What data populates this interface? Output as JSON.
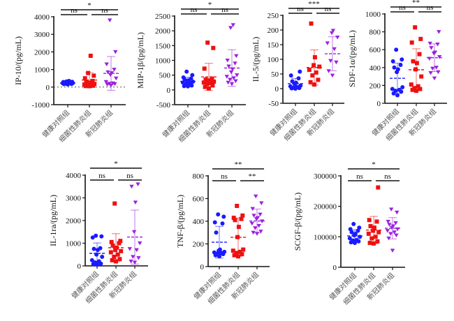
{
  "figure": {
    "group_colors": {
      "healthy": "#1a1aff",
      "bacterial": "#ee1111",
      "covid": "#9a22dd"
    }
  },
  "chart_data": [
    {
      "type": "scatter",
      "title": "",
      "ylabel": "IP-10/(pg/mL)",
      "xlabel": "",
      "categories": [
        "健康对照组",
        "细菌性肺炎组",
        "新冠肺炎组"
      ],
      "ylim": [
        -1000,
        4000
      ],
      "yticks": [
        -1000,
        0,
        1000,
        2000,
        3000,
        4000
      ],
      "zero_line": true,
      "series": [
        {
          "name": "健康对照组",
          "marker": "circle",
          "mean": 230,
          "sd": 70,
          "values": [
            150,
            170,
            180,
            200,
            210,
            220,
            230,
            240,
            250,
            260,
            270,
            290,
            300,
            320,
            350
          ]
        },
        {
          "name": "细菌性肺炎组",
          "marker": "square",
          "mean": 400,
          "sd": 420,
          "values": [
            50,
            60,
            80,
            100,
            120,
            150,
            180,
            200,
            250,
            300,
            350,
            500,
            650,
            800,
            1780
          ]
        },
        {
          "name": "新冠肺炎组",
          "marker": "triangle-down",
          "mean": 780,
          "sd": 960,
          "values": [
            100,
            150,
            180,
            200,
            220,
            300,
            500,
            700,
            800,
            850,
            1000,
            1300,
            2000,
            3800
          ]
        }
      ],
      "comparisons": [
        {
          "groups": [
            0,
            1
          ],
          "label": "ns"
        },
        {
          "groups": [
            1,
            2
          ],
          "label": "ns"
        },
        {
          "groups": [
            0,
            2
          ],
          "label": "*"
        }
      ]
    },
    {
      "type": "scatter",
      "title": "",
      "ylabel": "MIP-1β/(pg/mL)",
      "xlabel": "",
      "categories": [
        "健康对照组",
        "细菌性肺炎组",
        "新冠肺炎组"
      ],
      "ylim": [
        -500,
        2500
      ],
      "yticks": [
        -500,
        0,
        500,
        1000,
        1500,
        2000,
        2500
      ],
      "zero_line": false,
      "series": [
        {
          "name": "健康对照组",
          "marker": "circle",
          "mean": 290,
          "sd": 140,
          "values": [
            120,
            130,
            150,
            200,
            230,
            250,
            280,
            300,
            320,
            350,
            380,
            420,
            500,
            620
          ]
        },
        {
          "name": "细菌性肺炎组",
          "marker": "square",
          "mean": 440,
          "sd": 460,
          "values": [
            50,
            100,
            150,
            200,
            230,
            250,
            280,
            300,
            320,
            350,
            380,
            720,
            1420,
            1600
          ]
        },
        {
          "name": "新冠肺炎组",
          "marker": "triangle-down",
          "mean": 740,
          "sd": 620,
          "values": [
            200,
            250,
            300,
            350,
            400,
            450,
            500,
            600,
            700,
            800,
            900,
            1000,
            1150,
            2100,
            2200
          ]
        }
      ],
      "comparisons": [
        {
          "groups": [
            0,
            1
          ],
          "label": "ns"
        },
        {
          "groups": [
            1,
            2
          ],
          "label": "ns"
        },
        {
          "groups": [
            0,
            2
          ],
          "label": "*"
        }
      ]
    },
    {
      "type": "scatter",
      "title": "",
      "ylabel": "IL-5/(pg/mL)",
      "xlabel": "",
      "categories": [
        "健康对照组",
        "细菌性肺炎组",
        "新冠肺炎组"
      ],
      "ylim": [
        -50,
        250
      ],
      "yticks": [
        -50,
        0,
        50,
        100,
        150,
        200,
        250
      ],
      "zero_line": false,
      "series": [
        {
          "name": "健康对照组",
          "marker": "circle",
          "mean": 17,
          "sd": 18,
          "values": [
            0,
            1,
            2,
            3,
            5,
            8,
            10,
            15,
            20,
            25,
            35,
            45,
            58
          ]
        },
        {
          "name": "细菌性肺炎组",
          "marker": "square",
          "mean": 72,
          "sd": 60,
          "values": [
            14,
            22,
            30,
            45,
            55,
            64,
            75,
            80,
            107,
            222
          ]
        },
        {
          "name": "新冠肺炎组",
          "marker": "triangle-down",
          "mean": 119,
          "sd": 58,
          "values": [
            45,
            60,
            90,
            95,
            135,
            155,
            175,
            190,
            198
          ]
        }
      ],
      "comparisons": [
        {
          "groups": [
            0,
            1
          ],
          "label": "ns"
        },
        {
          "groups": [
            1,
            2
          ],
          "label": "ns"
        },
        {
          "groups": [
            0,
            2
          ],
          "label": "***"
        }
      ]
    },
    {
      "type": "scatter",
      "title": "",
      "ylabel": "SDF-1α/(pg/mL)",
      "xlabel": "",
      "categories": [
        "健康对照组",
        "细菌性肺炎组",
        "新冠肺炎组"
      ],
      "ylim": [
        0,
        1000
      ],
      "yticks": [
        0,
        200,
        400,
        600,
        800,
        1000
      ],
      "zero_line": false,
      "series": [
        {
          "name": "健康对照组",
          "marker": "circle",
          "mean": 280,
          "sd": 170,
          "values": [
            90,
            110,
            130,
            140,
            150,
            160,
            180,
            350,
            380,
            400,
            430,
            470,
            490,
            600
          ]
        },
        {
          "name": "细菌性肺炎组",
          "marker": "square",
          "mean": 375,
          "sd": 235,
          "values": [
            140,
            150,
            160,
            170,
            190,
            210,
            300,
            380,
            450,
            470,
            550,
            680,
            720,
            850
          ]
        },
        {
          "name": "新冠肺炎组",
          "marker": "triangle-down",
          "mean": 510,
          "sd": 155,
          "values": [
            280,
            340,
            350,
            390,
            400,
            500,
            520,
            560,
            570,
            620,
            660,
            670,
            800
          ]
        }
      ],
      "comparisons": [
        {
          "groups": [
            0,
            1
          ],
          "label": "ns"
        },
        {
          "groups": [
            1,
            2
          ],
          "label": "ns"
        },
        {
          "groups": [
            0,
            2
          ],
          "label": "**"
        }
      ]
    },
    {
      "type": "scatter",
      "title": "",
      "ylabel": "IL-1ra/(pg/mL)",
      "xlabel": "",
      "categories": [
        "健康对照组",
        "细菌性肺炎组",
        "新冠肺炎组"
      ],
      "ylim": [
        0,
        4000
      ],
      "yticks": [
        0,
        1000,
        2000,
        3000,
        4000
      ],
      "zero_line": false,
      "series": [
        {
          "name": "健康对照组",
          "marker": "circle",
          "mean": 550,
          "sd": 460,
          "values": [
            50,
            80,
            100,
            150,
            200,
            250,
            400,
            500,
            700,
            750,
            780,
            1250,
            1300,
            1330
          ]
        },
        {
          "name": "细菌性肺炎组",
          "marker": "square",
          "mean": 800,
          "sd": 620,
          "values": [
            200,
            250,
            300,
            400,
            500,
            600,
            650,
            700,
            800,
            900,
            1000,
            1050,
            1100,
            2750
          ]
        },
        {
          "name": "新冠肺炎组",
          "marker": "triangle-down",
          "mean": 1270,
          "sd": 1190,
          "values": [
            150,
            200,
            350,
            400,
            700,
            750,
            1000,
            1500,
            2800,
            3500,
            3600
          ]
        }
      ],
      "comparisons": [
        {
          "groups": [
            0,
            1
          ],
          "label": "ns"
        },
        {
          "groups": [
            1,
            2
          ],
          "label": "ns"
        },
        {
          "groups": [
            0,
            2
          ],
          "label": "*"
        }
      ]
    },
    {
      "type": "scatter",
      "title": "",
      "ylabel": "TNF-β/(pg/mL)",
      "xlabel": "",
      "categories": [
        "健康对照组",
        "细菌性肺炎组",
        "新冠肺炎组"
      ],
      "ylim": [
        0,
        800
      ],
      "yticks": [
        0,
        200,
        400,
        600,
        800
      ],
      "zero_line": false,
      "series": [
        {
          "name": "健康对照组",
          "marker": "circle",
          "mean": 215,
          "sd": 140,
          "values": [
            90,
            100,
            110,
            115,
            120,
            125,
            130,
            140,
            150,
            300,
            380,
            390,
            440,
            460
          ]
        },
        {
          "name": "细菌性肺炎组",
          "marker": "square",
          "mean": 258,
          "sd": 170,
          "values": [
            90,
            100,
            110,
            120,
            130,
            140,
            150,
            260,
            350,
            410,
            420,
            430,
            450,
            535
          ]
        },
        {
          "name": "新冠肺炎组",
          "marker": "triangle-down",
          "mean": 402,
          "sd": 105,
          "values": [
            290,
            300,
            310,
            340,
            360,
            380,
            400,
            420,
            430,
            450,
            460,
            510,
            560,
            620
          ]
        }
      ],
      "comparisons": [
        {
          "groups": [
            0,
            1
          ],
          "label": "ns"
        },
        {
          "groups": [
            1,
            2
          ],
          "label": "**"
        },
        {
          "groups": [
            0,
            2
          ],
          "label": "**"
        }
      ]
    },
    {
      "type": "scatter",
      "title": "",
      "ylabel": "SCGF-β/(pg/mL)",
      "xlabel": "",
      "categories": [
        "健康对照组",
        "细菌性肺炎组",
        "新冠肺炎组"
      ],
      "ylim": [
        0,
        300000
      ],
      "yticks": [
        0,
        100000,
        200000,
        300000
      ],
      "zero_line": false,
      "series": [
        {
          "name": "健康对照组",
          "marker": "circle",
          "mean": 103000,
          "sd": 20000,
          "values": [
            80000,
            82000,
            85000,
            88000,
            90000,
            95000,
            100000,
            105000,
            110000,
            115000,
            120000,
            125000,
            130000,
            142000
          ]
        },
        {
          "name": "细菌性肺炎组",
          "marker": "square",
          "mean": 122000,
          "sd": 45000,
          "values": [
            78000,
            80000,
            85000,
            95000,
            100000,
            110000,
            115000,
            120000,
            130000,
            135000,
            150000,
            155000,
            262000
          ]
        },
        {
          "name": "新冠肺炎组",
          "marker": "triangle-down",
          "mean": 128000,
          "sd": 35000,
          "values": [
            55000,
            95000,
            105000,
            110000,
            115000,
            120000,
            125000,
            130000,
            135000,
            140000,
            145000,
            150000,
            180000,
            190000
          ]
        }
      ],
      "comparisons": [
        {
          "groups": [
            0,
            1
          ],
          "label": "ns"
        },
        {
          "groups": [
            1,
            2
          ],
          "label": "ns"
        },
        {
          "groups": [
            0,
            2
          ],
          "label": "*"
        }
      ]
    }
  ]
}
